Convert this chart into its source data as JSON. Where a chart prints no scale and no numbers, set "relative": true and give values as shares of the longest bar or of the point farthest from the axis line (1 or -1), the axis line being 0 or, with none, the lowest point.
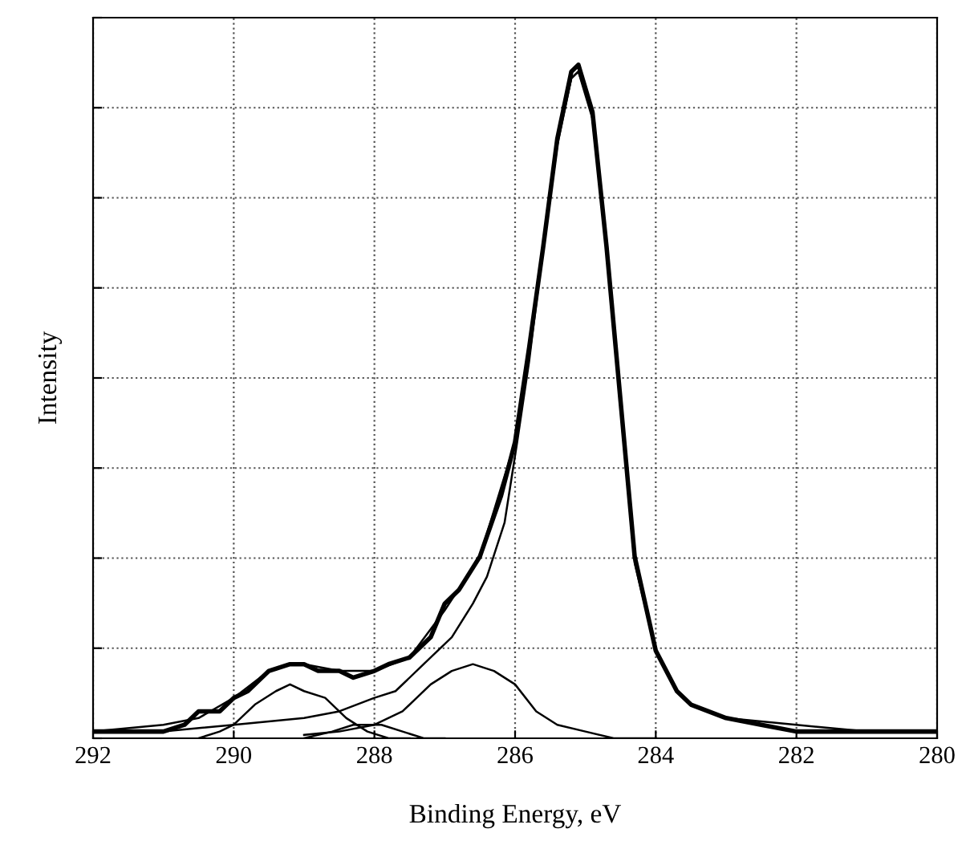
{
  "chart_data": {
    "type": "line",
    "relative": true,
    "xlabel": "Binding Energy, eV",
    "ylabel": "Intensity",
    "xlim": [
      292,
      280
    ],
    "xticks": [
      292,
      290,
      288,
      286,
      284,
      282,
      280
    ],
    "grid": true,
    "legend": false,
    "tick_labels": "x",
    "marker": "none",
    "line_style": "solid",
    "series": [
      {
        "color": "#000000",
        "x": [
          292,
          291.5,
          291,
          290.7,
          290.5,
          290.2,
          290,
          289.8,
          289.5,
          289.2,
          289,
          288.8,
          288.5,
          288.3,
          288,
          287.8,
          287.5,
          287.2,
          287,
          286.8,
          286.5,
          286.2,
          286,
          285.8,
          285.6,
          285.4,
          285.2,
          285.1,
          284.9,
          284.7,
          284.5,
          284.3,
          284,
          283.7,
          283.5,
          283,
          282.5,
          282,
          281,
          280
        ],
        "values": [
          0.01,
          0.01,
          0.01,
          0.02,
          0.04,
          0.04,
          0.06,
          0.07,
          0.1,
          0.11,
          0.11,
          0.1,
          0.1,
          0.09,
          0.1,
          0.11,
          0.12,
          0.15,
          0.2,
          0.22,
          0.27,
          0.36,
          0.44,
          0.58,
          0.73,
          0.89,
          0.99,
          1,
          0.93,
          0.73,
          0.5,
          0.27,
          0.13,
          0.07,
          0.05,
          0.03,
          0.02,
          0.01,
          0.01,
          0.01
        ]
      },
      {
        "color": "#000000",
        "x": [
          292,
          291,
          290.5,
          290,
          289.5,
          289.2,
          289,
          288.5,
          288,
          287.5,
          287,
          286.5,
          286,
          285.8,
          285.6,
          285.4,
          285.2,
          285.1,
          284.9,
          284.7,
          284.5,
          284.3,
          284,
          283.7,
          283.5,
          283,
          282,
          281,
          280
        ],
        "values": [
          0.01,
          0.02,
          0.03,
          0.06,
          0.1,
          0.11,
          0.11,
          0.1,
          0.1,
          0.12,
          0.19,
          0.27,
          0.44,
          0.58,
          0.73,
          0.89,
          0.98,
          0.99,
          0.93,
          0.73,
          0.5,
          0.27,
          0.13,
          0.07,
          0.05,
          0.03,
          0.02,
          0.01,
          0.01
        ]
      },
      {
        "color": "#000000",
        "x": [
          292,
          291,
          290,
          289,
          288.5,
          288,
          287.7,
          287.3,
          286.9,
          286.6,
          286.4,
          286.15,
          285.97,
          285.8,
          285.6,
          285.4,
          285.2,
          285.1,
          284.9,
          284.7,
          284.5,
          284.3,
          284,
          283.7,
          283.5,
          283,
          282,
          281,
          280
        ],
        "values": [
          0.01,
          0.01,
          0.02,
          0.03,
          0.04,
          0.06,
          0.07,
          0.11,
          0.15,
          0.2,
          0.24,
          0.32,
          0.44,
          0.56,
          0.73,
          0.88,
          0.98,
          0.99,
          0.92,
          0.73,
          0.49,
          0.26,
          0.13,
          0.07,
          0.05,
          0.03,
          0.01,
          0.01,
          0.01
        ]
      },
      {
        "color": "#000000",
        "x": [
          289,
          288.5,
          288,
          287.6,
          287.2,
          286.9,
          286.6,
          286.3,
          286,
          285.7,
          285.4,
          285,
          284.6,
          284
        ],
        "values": [
          0.005,
          0.01,
          0.02,
          0.04,
          0.08,
          0.1,
          0.11,
          0.1,
          0.08,
          0.04,
          0.02,
          0.01,
          0,
          0
        ]
      },
      {
        "color": "#000000",
        "x": [
          290.5,
          290.2,
          290,
          289.7,
          289.4,
          289.2,
          289,
          288.7,
          288.4,
          288.1,
          287.8,
          287.5
        ],
        "values": [
          0,
          0.01,
          0.02,
          0.05,
          0.07,
          0.08,
          0.07,
          0.06,
          0.03,
          0.01,
          0,
          0
        ]
      },
      {
        "color": "#000000",
        "x": [
          289,
          288.6,
          288.3,
          288.1,
          287.9,
          287.6,
          287.3,
          287
        ],
        "values": [
          0,
          0.01,
          0.02,
          0.02,
          0.02,
          0.01,
          0,
          0
        ]
      }
    ]
  }
}
